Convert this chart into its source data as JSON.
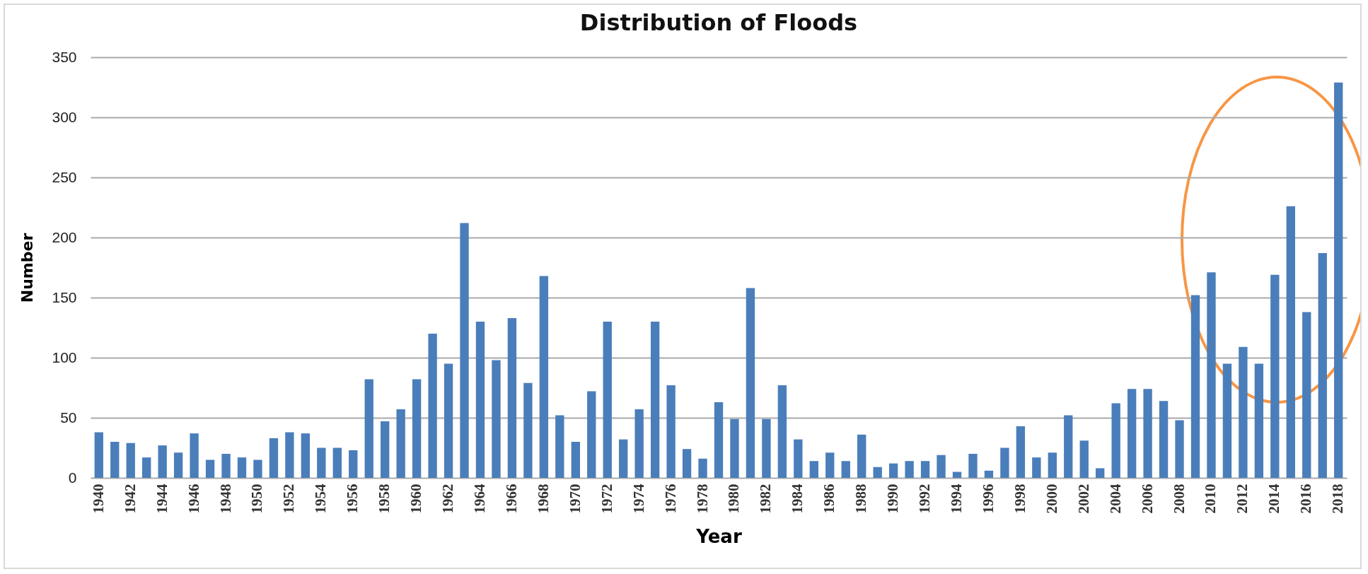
{
  "chart_data": {
    "type": "bar",
    "title": "Distribution of Floods",
    "xlabel": "Year",
    "ylabel": "Number",
    "categories": [
      "1940",
      null,
      "1942",
      null,
      "1944",
      null,
      "1946",
      null,
      "1948",
      null,
      "1950",
      null,
      "1952",
      null,
      "1954",
      null,
      "1956",
      null,
      "1958",
      null,
      "1960",
      null,
      "1962",
      null,
      "1964",
      null,
      "1966",
      null,
      "1968",
      null,
      "1970",
      null,
      "1972",
      null,
      "1974",
      null,
      "1976",
      null,
      "1978",
      null,
      "1980",
      null,
      "1982",
      null,
      "1984",
      null,
      "1986",
      null,
      "1988",
      null,
      "1990",
      null,
      "1992",
      null,
      "1994",
      null,
      "1996",
      null,
      "1998",
      null,
      "2000",
      null,
      "2002",
      null,
      "2004",
      null,
      "2006",
      null,
      "2008",
      null,
      "2010",
      null,
      "2012",
      null,
      "2014",
      null,
      "2016",
      null,
      "2018"
    ],
    "values": [
      38,
      30,
      29,
      17,
      27,
      21,
      37,
      15,
      20,
      17,
      15,
      33,
      38,
      37,
      25,
      25,
      23,
      82,
      47,
      57,
      82,
      120,
      95,
      212,
      130,
      98,
      133,
      79,
      168,
      52,
      30,
      72,
      130,
      32,
      57,
      130,
      77,
      24,
      16,
      63,
      49,
      158,
      49,
      77,
      32,
      14,
      21,
      14,
      36,
      9,
      12,
      14,
      14,
      19,
      5,
      20,
      6,
      25,
      43,
      17,
      21,
      52,
      31,
      8,
      62,
      74,
      74,
      64,
      48,
      152,
      171,
      95,
      109,
      95,
      169,
      226,
      138,
      187,
      329
    ],
    "color": "#4a7ebb",
    "ylim": [
      0,
      350
    ],
    "yticks": [
      0,
      50,
      100,
      150,
      200,
      250,
      300,
      350
    ],
    "grid": "y"
  }
}
